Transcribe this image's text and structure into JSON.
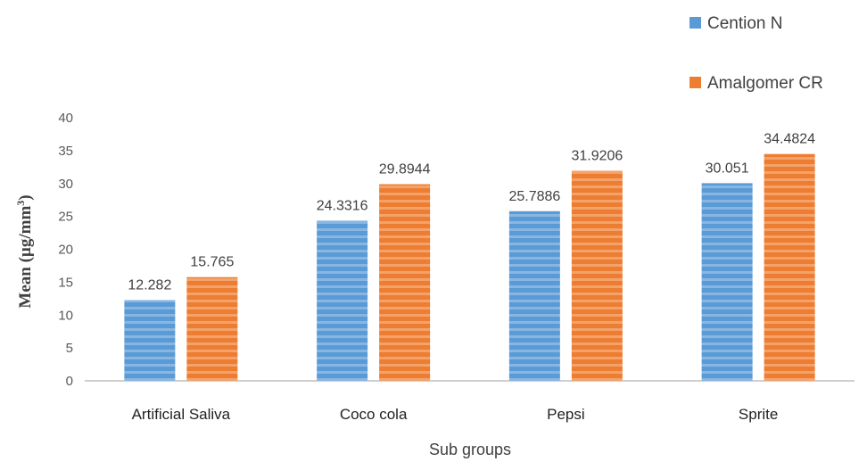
{
  "chart_data": {
    "type": "bar",
    "title": "",
    "xlabel": "Sub groups",
    "ylabel": {
      "main": "Mean (µg/mm",
      "superscript": "3",
      "close": ")"
    },
    "categories": [
      "Artificial Saliva",
      "Coco cola",
      "Pepsi",
      "Sprite"
    ],
    "series": [
      {
        "name": "Cention N",
        "values": [
          12.282,
          24.3316,
          25.7886,
          30.051
        ],
        "labels": [
          "12.282",
          "24.3316",
          "25.7886",
          "30.051"
        ],
        "color": "#5b9bd5"
      },
      {
        "name": "Amalgomer CR",
        "values": [
          15.765,
          29.8944,
          31.9206,
          34.4824
        ],
        "labels": [
          "15.765",
          "29.8944",
          "31.9206",
          "34.4824"
        ],
        "color": "#ed7d31"
      }
    ],
    "ylim": [
      0,
      40
    ],
    "yticks": [
      0,
      5,
      10,
      15,
      20,
      25,
      30,
      35,
      40
    ],
    "grid": false,
    "legend": "top-right"
  }
}
